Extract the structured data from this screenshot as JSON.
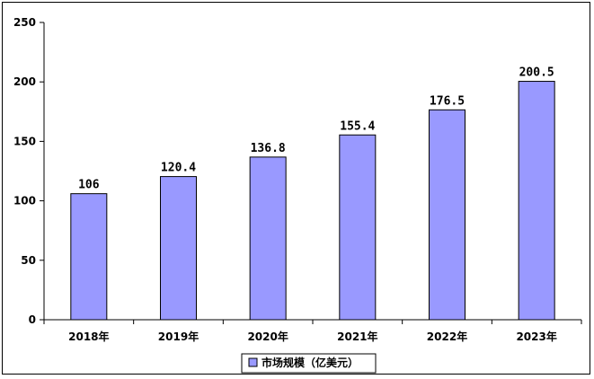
{
  "chart_data": {
    "type": "bar",
    "categories": [
      "2018年",
      "2019年",
      "2020年",
      "2021年",
      "2022年",
      "2023年"
    ],
    "series": [
      {
        "name": "市场规模（亿美元）",
        "values": [
          106,
          120.4,
          136.8,
          155.4,
          176.5,
          200.5
        ]
      }
    ],
    "data_labels": [
      "106",
      "120.4",
      "136.8",
      "155.4",
      "176.5",
      "200.5"
    ],
    "y_ticks": [
      "0",
      "50",
      "100",
      "150",
      "200",
      "250"
    ],
    "ylim": [
      0,
      250
    ],
    "grid": false,
    "legend_position": "bottom",
    "bar_color": "#9999ff",
    "title": "",
    "xlabel": "",
    "ylabel": ""
  }
}
